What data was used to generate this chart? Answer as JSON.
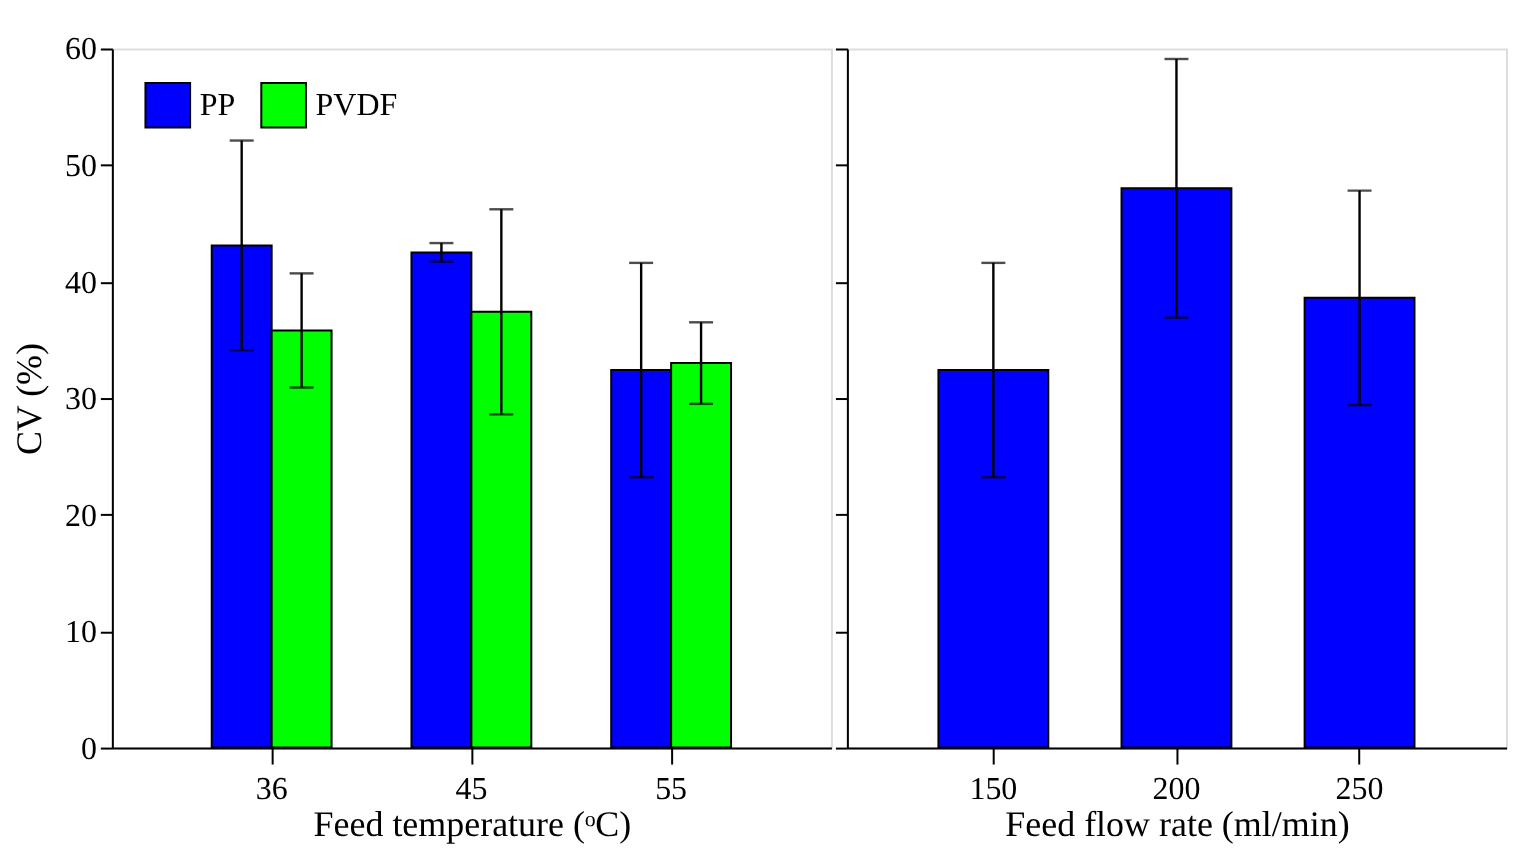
{
  "chart_data": [
    {
      "type": "bar",
      "categories": [
        "36",
        "45",
        "55"
      ],
      "xlabel": "Feed temperature (ᵒC)",
      "ylabel": "CV (%)",
      "ylim": [
        0,
        60
      ],
      "yticks": [
        0,
        10,
        20,
        30,
        40,
        50,
        60
      ],
      "legend": "top left",
      "series": [
        {
          "name": "PP",
          "color": "#0000ff",
          "values": [
            43.1,
            42.5,
            32.4
          ],
          "errors": [
            9,
            0.8,
            9.2
          ]
        },
        {
          "name": "PVDF",
          "color": "#00ff00",
          "values": [
            35.8,
            37.4,
            33.0
          ],
          "errors": [
            4.9,
            8.8,
            3.5
          ]
        }
      ]
    },
    {
      "type": "bar",
      "categories": [
        "150",
        "200",
        "250"
      ],
      "xlabel": "Feed flow rate (ml/min)",
      "ylim": [
        0,
        60
      ],
      "yticks": [
        0,
        10,
        20,
        30,
        40,
        50,
        60
      ],
      "tick_labels": "x",
      "series": [
        {
          "color": "#0000ff",
          "values": [
            32.4,
            48.0,
            38.6
          ],
          "errors": [
            9.2,
            11.1,
            9.2
          ]
        }
      ]
    }
  ]
}
